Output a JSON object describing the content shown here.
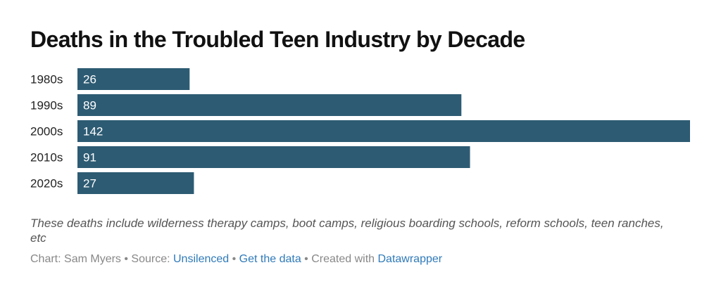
{
  "chart_data": {
    "type": "bar",
    "orientation": "horizontal",
    "title": "Deaths in the Troubled Teen Industry by Decade",
    "categories": [
      "1980s",
      "1990s",
      "2000s",
      "2010s",
      "2020s"
    ],
    "values": [
      26,
      89,
      142,
      91,
      27
    ],
    "xlim": [
      0,
      142
    ],
    "xlabel": "",
    "ylabel": "",
    "grid": false,
    "bar_color": "#2d5b73",
    "notes": "These deaths include wilderness therapy camps, boot camps, religious boarding schools, reform schools, teen ranches, etc"
  },
  "footer": {
    "chart_prefix": "Chart: Sam Myers • Source: ",
    "source_link": "Unsilenced",
    "sep1": " • ",
    "data_link": "Get the data",
    "created_prefix": " • Created with ",
    "tool_link": "Datawrapper"
  },
  "colors": {
    "bar": "#2d5b73",
    "link": "#2f7ab9"
  }
}
